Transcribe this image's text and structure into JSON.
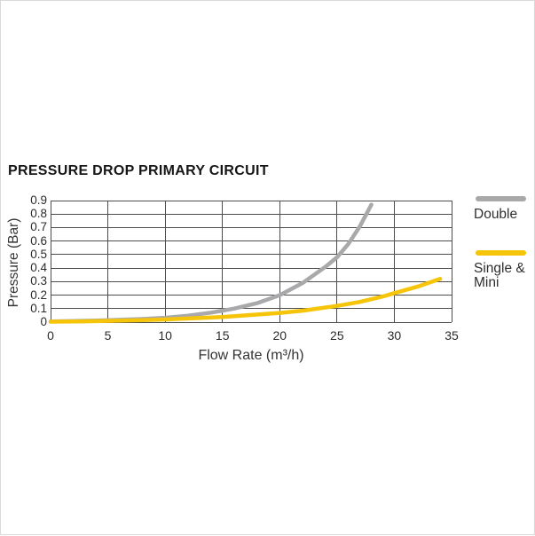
{
  "chart_data": {
    "type": "line",
    "title": "PRESSURE DROP PRIMARY CIRCUIT",
    "xlabel": "Flow Rate (m³/h)",
    "ylabel": "Pressure (Bar)",
    "xlim": [
      0,
      35
    ],
    "ylim": [
      0,
      0.9
    ],
    "x_ticks": [
      0,
      5,
      10,
      15,
      20,
      25,
      30,
      35
    ],
    "y_ticks": [
      0,
      0.1,
      0.2,
      0.3,
      0.4,
      0.5,
      0.6,
      0.7,
      0.8,
      0.9
    ],
    "y_tick_labels": [
      "0",
      "0.1",
      "0.2",
      "0.3",
      "0.4",
      "0.5",
      "0.6",
      "0.7",
      "0.8",
      "0.9"
    ],
    "grid": true,
    "legend_position": "right",
    "series": [
      {
        "name": "Double",
        "color": "#a9a9ab",
        "points": [
          [
            0,
            0.005
          ],
          [
            2,
            0.008
          ],
          [
            4,
            0.012
          ],
          [
            6,
            0.017
          ],
          [
            8,
            0.023
          ],
          [
            10,
            0.032
          ],
          [
            12,
            0.048
          ],
          [
            14,
            0.07
          ],
          [
            16,
            0.1
          ],
          [
            18,
            0.14
          ],
          [
            20,
            0.2
          ],
          [
            22,
            0.29
          ],
          [
            24,
            0.41
          ],
          [
            25,
            0.48
          ],
          [
            26,
            0.58
          ],
          [
            27,
            0.71
          ],
          [
            28,
            0.87
          ]
        ]
      },
      {
        "name": "Single & Mini",
        "color": "#f6c408",
        "points": [
          [
            0,
            0.003
          ],
          [
            3,
            0.006
          ],
          [
            5,
            0.009
          ],
          [
            8,
            0.015
          ],
          [
            10,
            0.02
          ],
          [
            12,
            0.027
          ],
          [
            15,
            0.038
          ],
          [
            17,
            0.05
          ],
          [
            20,
            0.068
          ],
          [
            22,
            0.085
          ],
          [
            25,
            0.12
          ],
          [
            27,
            0.15
          ],
          [
            29,
            0.19
          ],
          [
            30,
            0.215
          ],
          [
            32,
            0.262
          ],
          [
            34,
            0.32
          ]
        ]
      }
    ]
  }
}
